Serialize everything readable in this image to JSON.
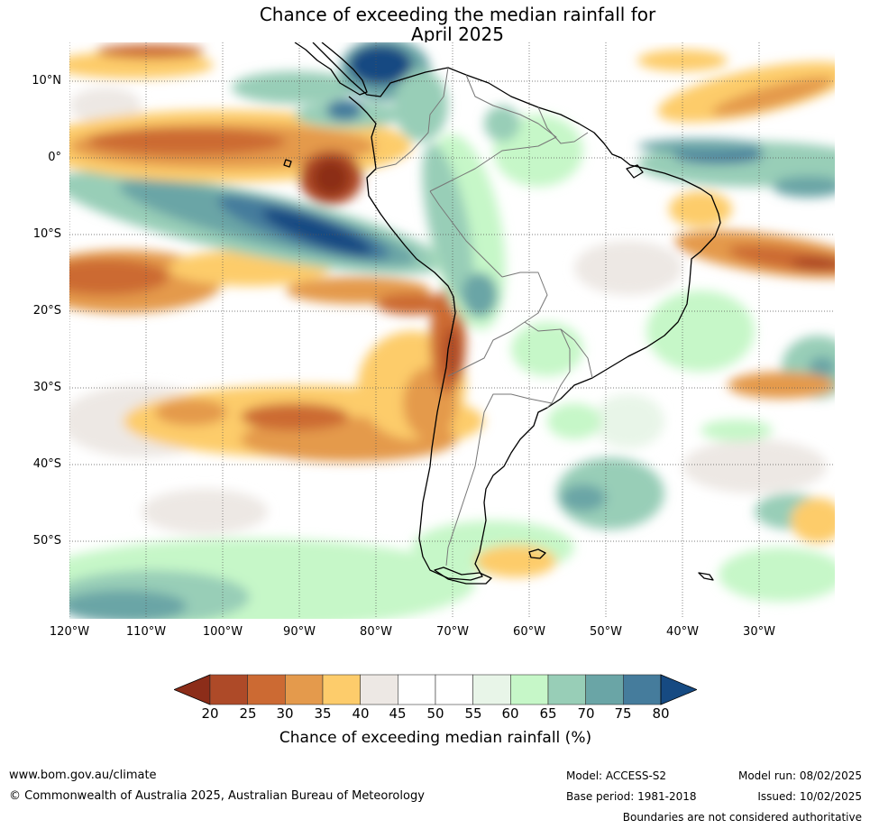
{
  "title": {
    "line1": "Chance of exceeding the median rainfall for",
    "line2": "April 2025"
  },
  "map": {
    "lat_labels": [
      "10°N",
      "0°",
      "10°S",
      "20°S",
      "30°S",
      "40°S",
      "50°S"
    ],
    "lon_labels": [
      "120°W",
      "110°W",
      "100°W",
      "90°W",
      "80°W",
      "70°W",
      "60°W",
      "50°W",
      "40°W",
      "30°W"
    ]
  },
  "colorbar": {
    "ticks": [
      "20",
      "25",
      "30",
      "35",
      "40",
      "45",
      "50",
      "55",
      "60",
      "65",
      "70",
      "75",
      "80"
    ],
    "colors": [
      "#8c2d19",
      "#ae4a28",
      "#cc6a33",
      "#e49a4c",
      "#fdcc6b",
      "#ede8e4",
      "#ffffff",
      "#ffffff",
      "#e8f5e8",
      "#c6f7c8",
      "#98ceb7",
      "#6aa5a6",
      "#457c9c",
      "#164a82"
    ],
    "label": "Chance of exceeding median rainfall (%)"
  },
  "footer": {
    "website": "www.bom.gov.au/climate",
    "copyright": "© Commonwealth of Australia 2025, Australian Bureau of Meteorology",
    "model": "Model: ACCESS-S2",
    "base_period": "Base period: 1981-2018",
    "model_run": "Model run: 08/02/2025",
    "issued": "Issued: 10/02/2025",
    "disclaimer": "Boundaries are not considered authoritative"
  }
}
